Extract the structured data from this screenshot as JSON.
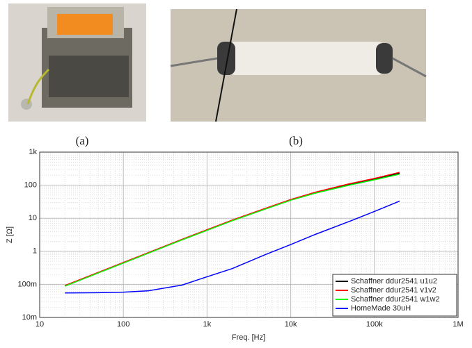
{
  "figure": {
    "captions": [
      "(a)",
      "(b)"
    ]
  },
  "chart_data": {
    "type": "line",
    "xlabel": "Freq. [Hz]",
    "ylabel": "Z [Ω]",
    "x": [
      20,
      50,
      100,
      200,
      500,
      1000,
      2000,
      5000,
      10000,
      20000,
      50000,
      100000,
      200000
    ],
    "series": [
      {
        "name": "Schaffner ddur2541 u1u2",
        "color": "#000000",
        "values": [
          0.09,
          0.225,
          0.45,
          0.9,
          2.25,
          4.4,
          8.6,
          19.5,
          36,
          60,
          105,
          155,
          230
        ]
      },
      {
        "name": "Schaffner ddur2541 v1v2",
        "color": "#ff0000",
        "values": [
          0.092,
          0.23,
          0.46,
          0.92,
          2.3,
          4.5,
          8.8,
          20,
          37,
          62,
          110,
          160,
          245
        ]
      },
      {
        "name": "Schaffner ddur2541 w1w2",
        "color": "#00ff00",
        "values": [
          0.088,
          0.22,
          0.44,
          0.88,
          2.2,
          4.3,
          8.4,
          19,
          35,
          58,
          100,
          145,
          215
        ]
      },
      {
        "name": "HomeMade 30uH",
        "color": "#0000ff",
        "values": [
          0.055,
          0.056,
          0.058,
          0.064,
          0.095,
          0.17,
          0.3,
          0.8,
          1.6,
          3.3,
          8,
          16,
          33
        ]
      }
    ],
    "xlim": [
      10,
      1000000
    ],
    "xticks": [
      10,
      100,
      {
        "value": 1000,
        "label": "1k"
      },
      {
        "value": 10000,
        "label": "10k"
      },
      {
        "value": 100000,
        "label": "100k"
      },
      {
        "value": 1000000,
        "label": "1M"
      }
    ],
    "ylim": [
      0.01,
      1000
    ],
    "yticks": [
      {
        "value": 0.01,
        "label": "10m"
      },
      {
        "value": 0.1,
        "label": "100m"
      },
      1,
      10,
      100,
      {
        "value": 1000,
        "label": "1k"
      }
    ],
    "log_x": true,
    "log_y": true,
    "grid": true,
    "legend": "lower right"
  }
}
